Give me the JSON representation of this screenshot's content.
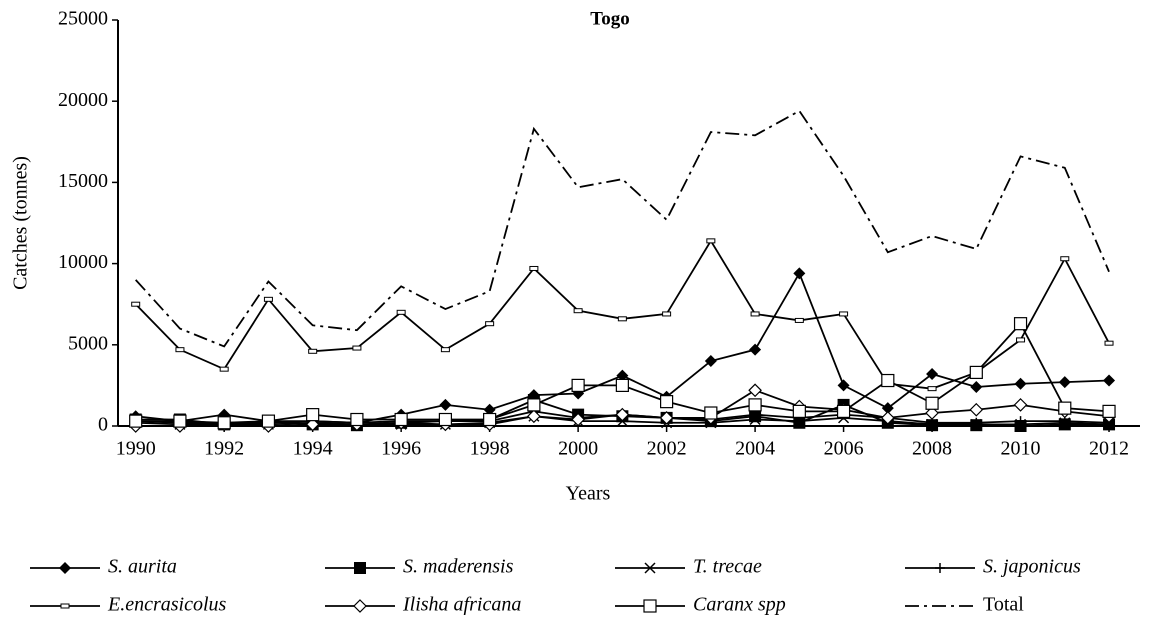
{
  "chart_data": {
    "type": "line",
    "title": "Togo",
    "x_label": "Years",
    "y_label": "Catches (tonnes)",
    "x": [
      1990,
      1991,
      1992,
      1993,
      1994,
      1995,
      1996,
      1997,
      1998,
      1999,
      2000,
      2001,
      2002,
      2003,
      2004,
      2005,
      2006,
      2007,
      2008,
      2009,
      2010,
      2011,
      2012
    ],
    "xlim": [
      1989.6,
      2012.7
    ],
    "xticks": [
      1990,
      1992,
      1994,
      1996,
      1998,
      2000,
      2002,
      2004,
      2006,
      2008,
      2010,
      2012
    ],
    "ylim": [
      0,
      25000
    ],
    "yticks": [
      0,
      5000,
      10000,
      15000,
      20000,
      25000
    ],
    "series": [
      {
        "name": "S. aurita",
        "color": "#000000",
        "marker": "diamond-filled",
        "italic": true,
        "values": [
          600,
          300,
          700,
          300,
          300,
          200,
          700,
          1300,
          1000,
          1900,
          2000,
          3100,
          1800,
          4000,
          4700,
          9400,
          2500,
          1100,
          3200,
          2400,
          2600,
          2700,
          2800
        ]
      },
      {
        "name": "S. maderensis",
        "color": "#000000",
        "marker": "square-filled",
        "italic": true,
        "values": [
          400,
          400,
          100,
          300,
          100,
          50,
          200,
          300,
          400,
          1600,
          700,
          600,
          500,
          300,
          600,
          200,
          1300,
          200,
          50,
          50,
          0,
          100,
          100
        ]
      },
      {
        "name": "T. trecae",
        "color": "#000000",
        "marker": "x",
        "italic": true,
        "values": [
          200,
          100,
          100,
          100,
          200,
          100,
          100,
          100,
          200,
          600,
          300,
          300,
          200,
          200,
          400,
          300,
          500,
          300,
          100,
          100,
          100,
          200,
          100
        ]
      },
      {
        "name": "S. japonicus",
        "color": "#000000",
        "marker": "plus",
        "italic": true,
        "values": [
          300,
          200,
          200,
          200,
          300,
          200,
          300,
          300,
          300,
          900,
          500,
          700,
          500,
          400,
          700,
          500,
          700,
          500,
          200,
          200,
          300,
          300,
          200
        ]
      },
      {
        "name": "E.encrasicolus",
        "color": "#000000",
        "marker": "dash",
        "italic": true,
        "values": [
          7500,
          4700,
          3500,
          7800,
          4600,
          4800,
          7000,
          4700,
          6300,
          9700,
          7100,
          6600,
          6900,
          11400,
          6900,
          6500,
          6900,
          2600,
          2300,
          3300,
          5300,
          10300,
          5100
        ]
      },
      {
        "name": "Ilisha africana",
        "color": "#000000",
        "marker": "diamond-open",
        "italic": true,
        "values": [
          0,
          0,
          100,
          0,
          100,
          100,
          200,
          100,
          100,
          600,
          400,
          700,
          500,
          500,
          2200,
          1200,
          1000,
          500,
          800,
          1000,
          1300,
          900,
          600
        ]
      },
      {
        "name": "Caranx spp",
        "color": "#000000",
        "marker": "square-open",
        "italic": true,
        "values": [
          300,
          300,
          200,
          300,
          700,
          400,
          400,
          400,
          400,
          1300,
          2500,
          2500,
          1500,
          800,
          1300,
          900,
          900,
          2800,
          1400,
          3300,
          6300,
          1100,
          900
        ]
      },
      {
        "name": "Total",
        "color": "#000000",
        "marker": "none",
        "dash": "14 5 3 5",
        "italic": false,
        "values": [
          9000,
          6000,
          4900,
          8900,
          6200,
          5900,
          8600,
          7200,
          8300,
          18300,
          14700,
          15200,
          12700,
          18100,
          17900,
          19400,
          15400,
          10700,
          11700,
          10900,
          16600,
          15900,
          9500
        ]
      }
    ]
  }
}
